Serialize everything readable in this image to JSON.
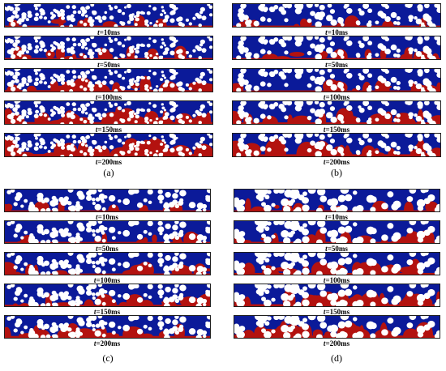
{
  "figure": {
    "colors": {
      "frame": "#1f1f1f",
      "phase_blue": "#0b1a99",
      "phase_red": "#b3120f",
      "particle": "#ffffff"
    },
    "panels": [
      {
        "caption": "(a)",
        "seed": 11,
        "density": "sparse",
        "frames": [
          {
            "time_prefix": "t",
            "time_value": "=10ms",
            "red_fraction": 0.04
          },
          {
            "time_prefix": "t",
            "time_value": "=50ms",
            "red_fraction": 0.1
          },
          {
            "time_prefix": "t",
            "time_value": "=100ms",
            "red_fraction": 0.18
          },
          {
            "time_prefix": "t",
            "time_value": "=150ms",
            "red_fraction": 0.24
          },
          {
            "time_prefix": "t",
            "time_value": "=200ms",
            "red_fraction": 0.3
          }
        ]
      },
      {
        "caption": "(b)",
        "seed": 23,
        "density": "medium",
        "frames": [
          {
            "time_prefix": "t",
            "time_value": "=10ms",
            "red_fraction": 0.03
          },
          {
            "time_prefix": "t",
            "time_value": "=50ms",
            "red_fraction": 0.08
          },
          {
            "time_prefix": "t",
            "time_value": "=100ms",
            "red_fraction": 0.14
          },
          {
            "time_prefix": "t",
            "time_value": "=150ms",
            "red_fraction": 0.2
          },
          {
            "time_prefix": "t",
            "time_value": "=200ms",
            "red_fraction": 0.26
          }
        ]
      },
      {
        "caption": "(c)",
        "seed": 37,
        "density": "medium",
        "frames": [
          {
            "time_prefix": "t",
            "time_value": "=10ms",
            "red_fraction": 0.03
          },
          {
            "time_prefix": "t",
            "time_value": "=50ms",
            "red_fraction": 0.08
          },
          {
            "time_prefix": "t",
            "time_value": "=100ms",
            "red_fraction": 0.14
          },
          {
            "time_prefix": "t",
            "time_value": "=150ms",
            "red_fraction": 0.19
          },
          {
            "time_prefix": "t",
            "time_value": "=200ms",
            "red_fraction": 0.24
          }
        ]
      },
      {
        "caption": "(d)",
        "seed": 51,
        "density": "dense",
        "frames": [
          {
            "time_prefix": "t",
            "time_value": "=10ms",
            "red_fraction": 0.08
          },
          {
            "time_prefix": "t",
            "time_value": "=50ms",
            "red_fraction": 0.16
          },
          {
            "time_prefix": "t",
            "time_value": "=100ms",
            "red_fraction": 0.22
          },
          {
            "time_prefix": "t",
            "time_value": "=150ms",
            "red_fraction": 0.26
          },
          {
            "time_prefix": "t",
            "time_value": "=200ms",
            "red_fraction": 0.3
          }
        ]
      }
    ]
  }
}
